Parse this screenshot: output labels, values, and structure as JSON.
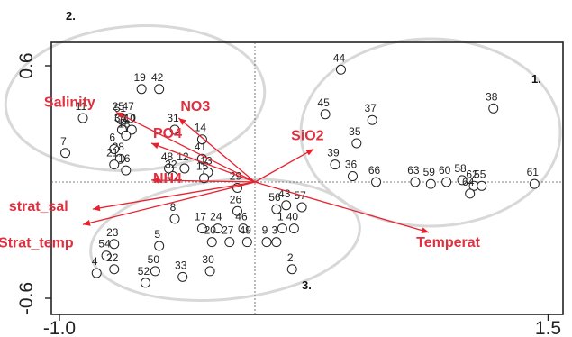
{
  "colors": {
    "arrow": "#e8202e",
    "variable_text": "#e03040",
    "ellipse": "#d8d8d8",
    "axis": "#222222",
    "site": "#222222"
  },
  "chart_data": {
    "type": "scatter",
    "title": "",
    "xlabel": "",
    "ylabel": "",
    "xlim": [
      -1.0,
      1.5
    ],
    "ylim": [
      -0.75,
      0.7
    ],
    "x_ticks": [
      {
        "value": -1.0,
        "label": "-1.0"
      },
      {
        "value": 1.5,
        "label": "1.5"
      }
    ],
    "y_ticks": [
      {
        "value": 0.6,
        "label": "0.6"
      },
      {
        "value": -0.6,
        "label": "-0.6"
      }
    ],
    "origin_crosshair": true,
    "sites": [
      {
        "label": "44",
        "x": 0.44,
        "y": 0.58
      },
      {
        "label": "38",
        "x": 1.22,
        "y": 0.38
      },
      {
        "label": "45",
        "x": 0.36,
        "y": 0.35
      },
      {
        "label": "37",
        "x": 0.6,
        "y": 0.32
      },
      {
        "label": "35",
        "x": 0.52,
        "y": 0.2
      },
      {
        "label": "39",
        "x": 0.41,
        "y": 0.09
      },
      {
        "label": "36",
        "x": 0.5,
        "y": 0.03
      },
      {
        "label": "66",
        "x": 0.62,
        "y": 0.0
      },
      {
        "label": "63",
        "x": 0.82,
        "y": 0.0
      },
      {
        "label": "59",
        "x": 0.9,
        "y": -0.01
      },
      {
        "label": "60",
        "x": 0.98,
        "y": 0.0
      },
      {
        "label": "58",
        "x": 1.06,
        "y": 0.01
      },
      {
        "label": "62",
        "x": 1.12,
        "y": -0.02
      },
      {
        "label": "55",
        "x": 1.16,
        "y": -0.02
      },
      {
        "label": "64",
        "x": 1.1,
        "y": -0.06
      },
      {
        "label": "61",
        "x": 1.43,
        "y": -0.01
      },
      {
        "label": "19",
        "x": -0.58,
        "y": 0.48
      },
      {
        "label": "42",
        "x": -0.49,
        "y": 0.48
      },
      {
        "label": "51",
        "x": -0.68,
        "y": 0.32
      },
      {
        "label": "11",
        "x": -0.88,
        "y": 0.33
      },
      {
        "label": "25",
        "x": -0.69,
        "y": 0.33
      },
      {
        "label": "47",
        "x": -0.64,
        "y": 0.33
      },
      {
        "label": "34",
        "x": -0.68,
        "y": 0.27
      },
      {
        "label": "10",
        "x": -0.63,
        "y": 0.27
      },
      {
        "label": "18",
        "x": -0.66,
        "y": 0.24
      },
      {
        "label": "31",
        "x": -0.41,
        "y": 0.27
      },
      {
        "label": "14",
        "x": -0.27,
        "y": 0.22
      },
      {
        "label": "6",
        "x": -0.72,
        "y": 0.17
      },
      {
        "label": "28",
        "x": -0.69,
        "y": 0.12
      },
      {
        "label": "7",
        "x": -0.97,
        "y": 0.15
      },
      {
        "label": "21",
        "x": -0.72,
        "y": 0.09
      },
      {
        "label": "41",
        "x": -0.27,
        "y": 0.12
      },
      {
        "label": "48",
        "x": -0.44,
        "y": 0.07
      },
      {
        "label": "12",
        "x": -0.36,
        "y": 0.07
      },
      {
        "label": "16",
        "x": -0.66,
        "y": 0.06
      },
      {
        "label": "32",
        "x": -0.42,
        "y": 0.03
      },
      {
        "label": "13",
        "x": -0.24,
        "y": 0.05
      },
      {
        "label": "15",
        "x": -0.26,
        "y": 0.02
      },
      {
        "label": "29",
        "x": -0.09,
        "y": -0.03
      },
      {
        "label": "26",
        "x": -0.09,
        "y": -0.15
      },
      {
        "label": "8",
        "x": -0.41,
        "y": -0.19
      },
      {
        "label": "43",
        "x": 0.16,
        "y": -0.12
      },
      {
        "label": "56",
        "x": 0.11,
        "y": -0.14
      },
      {
        "label": "57",
        "x": 0.24,
        "y": -0.13
      },
      {
        "label": "17",
        "x": -0.27,
        "y": -0.24
      },
      {
        "label": "24",
        "x": -0.19,
        "y": -0.24
      },
      {
        "label": "46",
        "x": -0.06,
        "y": -0.24
      },
      {
        "label": "1",
        "x": 0.14,
        "y": -0.24
      },
      {
        "label": "40",
        "x": 0.2,
        "y": -0.24
      },
      {
        "label": "20",
        "x": -0.22,
        "y": -0.31
      },
      {
        "label": "27",
        "x": -0.13,
        "y": -0.31
      },
      {
        "label": "49",
        "x": -0.04,
        "y": -0.31
      },
      {
        "label": "9",
        "x": 0.06,
        "y": -0.31
      },
      {
        "label": "3",
        "x": 0.11,
        "y": -0.31
      },
      {
        "label": "23",
        "x": -0.72,
        "y": -0.32
      },
      {
        "label": "5",
        "x": -0.49,
        "y": -0.33
      },
      {
        "label": "54",
        "x": -0.76,
        "y": -0.38
      },
      {
        "label": "22",
        "x": -0.72,
        "y": -0.45
      },
      {
        "label": "4",
        "x": -0.81,
        "y": -0.47
      },
      {
        "label": "50",
        "x": -0.51,
        "y": -0.46
      },
      {
        "label": "30",
        "x": -0.23,
        "y": -0.46
      },
      {
        "label": "52",
        "x": -0.56,
        "y": -0.52
      },
      {
        "label": "33",
        "x": -0.37,
        "y": -0.49
      },
      {
        "label": "2",
        "x": 0.19,
        "y": -0.45
      }
    ],
    "variables": [
      {
        "name": "Salinity",
        "x": -0.71,
        "y": 0.36
      },
      {
        "name": "NO3",
        "x": -0.39,
        "y": 0.33
      },
      {
        "name": "PO4",
        "x": -0.53,
        "y": 0.2
      },
      {
        "name": "SiO2",
        "x": 0.3,
        "y": 0.17
      },
      {
        "name": "NH4",
        "x": -0.53,
        "y": 0.01
      },
      {
        "name": "strat_sal",
        "x": -0.83,
        "y": -0.14
      },
      {
        "name": "Strat_temp",
        "x": -0.88,
        "y": -0.22
      },
      {
        "name": "Temperat",
        "x": 0.89,
        "y": -0.26
      }
    ],
    "groups": [
      {
        "label": "1."
      },
      {
        "label": "2."
      },
      {
        "label": "3."
      }
    ]
  }
}
